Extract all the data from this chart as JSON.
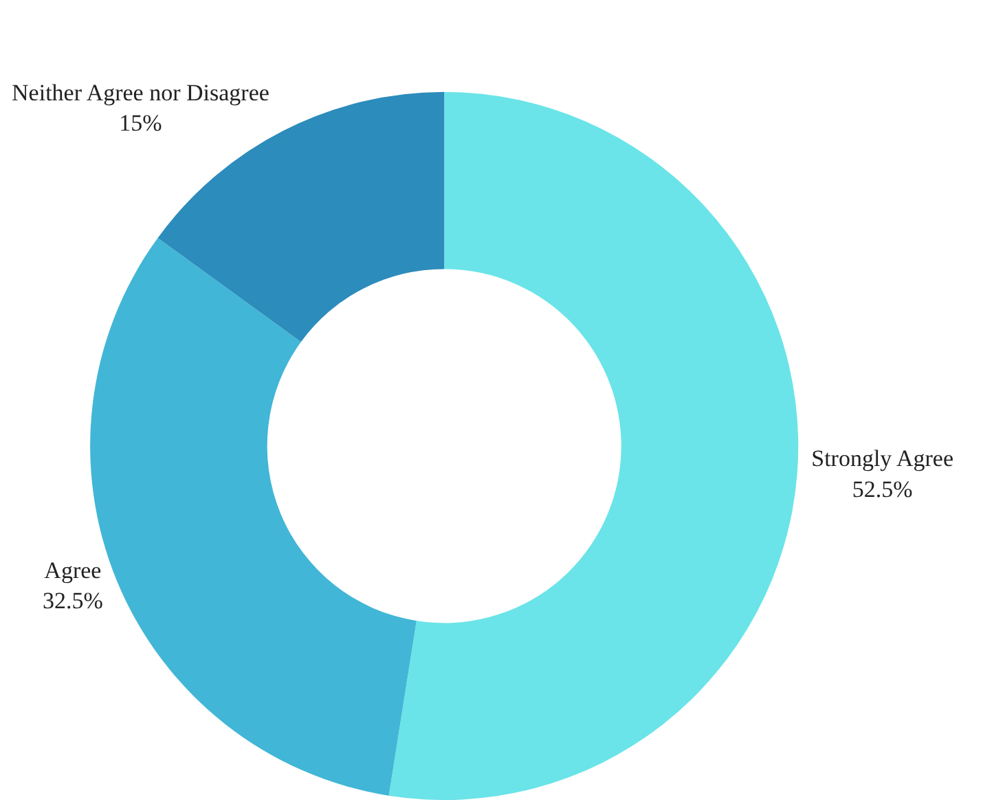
{
  "chart_data": {
    "type": "donut",
    "categories": [
      "Strongly Agree",
      "Agree",
      "Neither Agree nor Disagree"
    ],
    "values": [
      52.5,
      32.5,
      15
    ],
    "value_labels": [
      "52.5%",
      "32.5%",
      "15%"
    ],
    "colors": [
      "#6ae4e8",
      "#42b6d6",
      "#2c8cbb"
    ],
    "legend": false
  }
}
